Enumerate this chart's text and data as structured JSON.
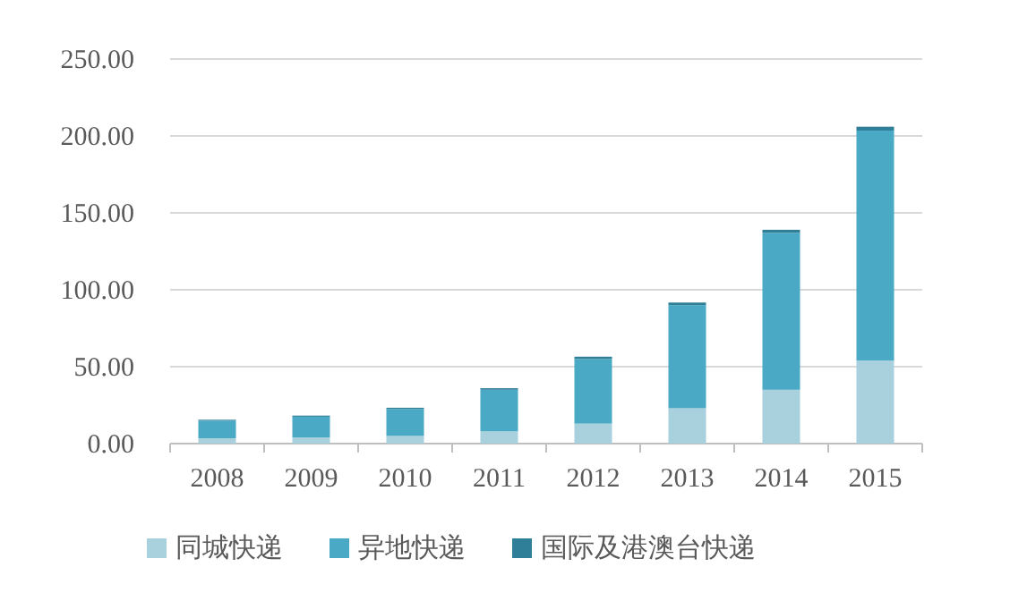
{
  "chart_data": {
    "type": "bar",
    "stacked": true,
    "categories": [
      "2008",
      "2009",
      "2010",
      "2011",
      "2012",
      "2013",
      "2014",
      "2015"
    ],
    "series": [
      {
        "name": "同城快递",
        "color": "#a8d0dd",
        "values": [
          3.5,
          4,
          5,
          8,
          13,
          23,
          35,
          54
        ]
      },
      {
        "name": "异地快递",
        "color": "#4aa9c4",
        "values": [
          11.4,
          13.5,
          17.5,
          27,
          42,
          67,
          102,
          149.5
        ]
      },
      {
        "name": "国际及港澳台快递",
        "color": "#2f7f99",
        "values": [
          0.6,
          0.7,
          0.8,
          1,
          1.5,
          1.7,
          2,
          2.5
        ]
      }
    ],
    "ylim": [
      0,
      250
    ],
    "yticks": [
      {
        "value": 0,
        "label": "0.00"
      },
      {
        "value": 50,
        "label": "50.00"
      },
      {
        "value": 100,
        "label": "100.00"
      },
      {
        "value": 150,
        "label": "150.00"
      },
      {
        "value": 200,
        "label": "200.00"
      },
      {
        "value": 250,
        "label": "250.00"
      }
    ],
    "grid": "y",
    "legend": "bottom"
  }
}
